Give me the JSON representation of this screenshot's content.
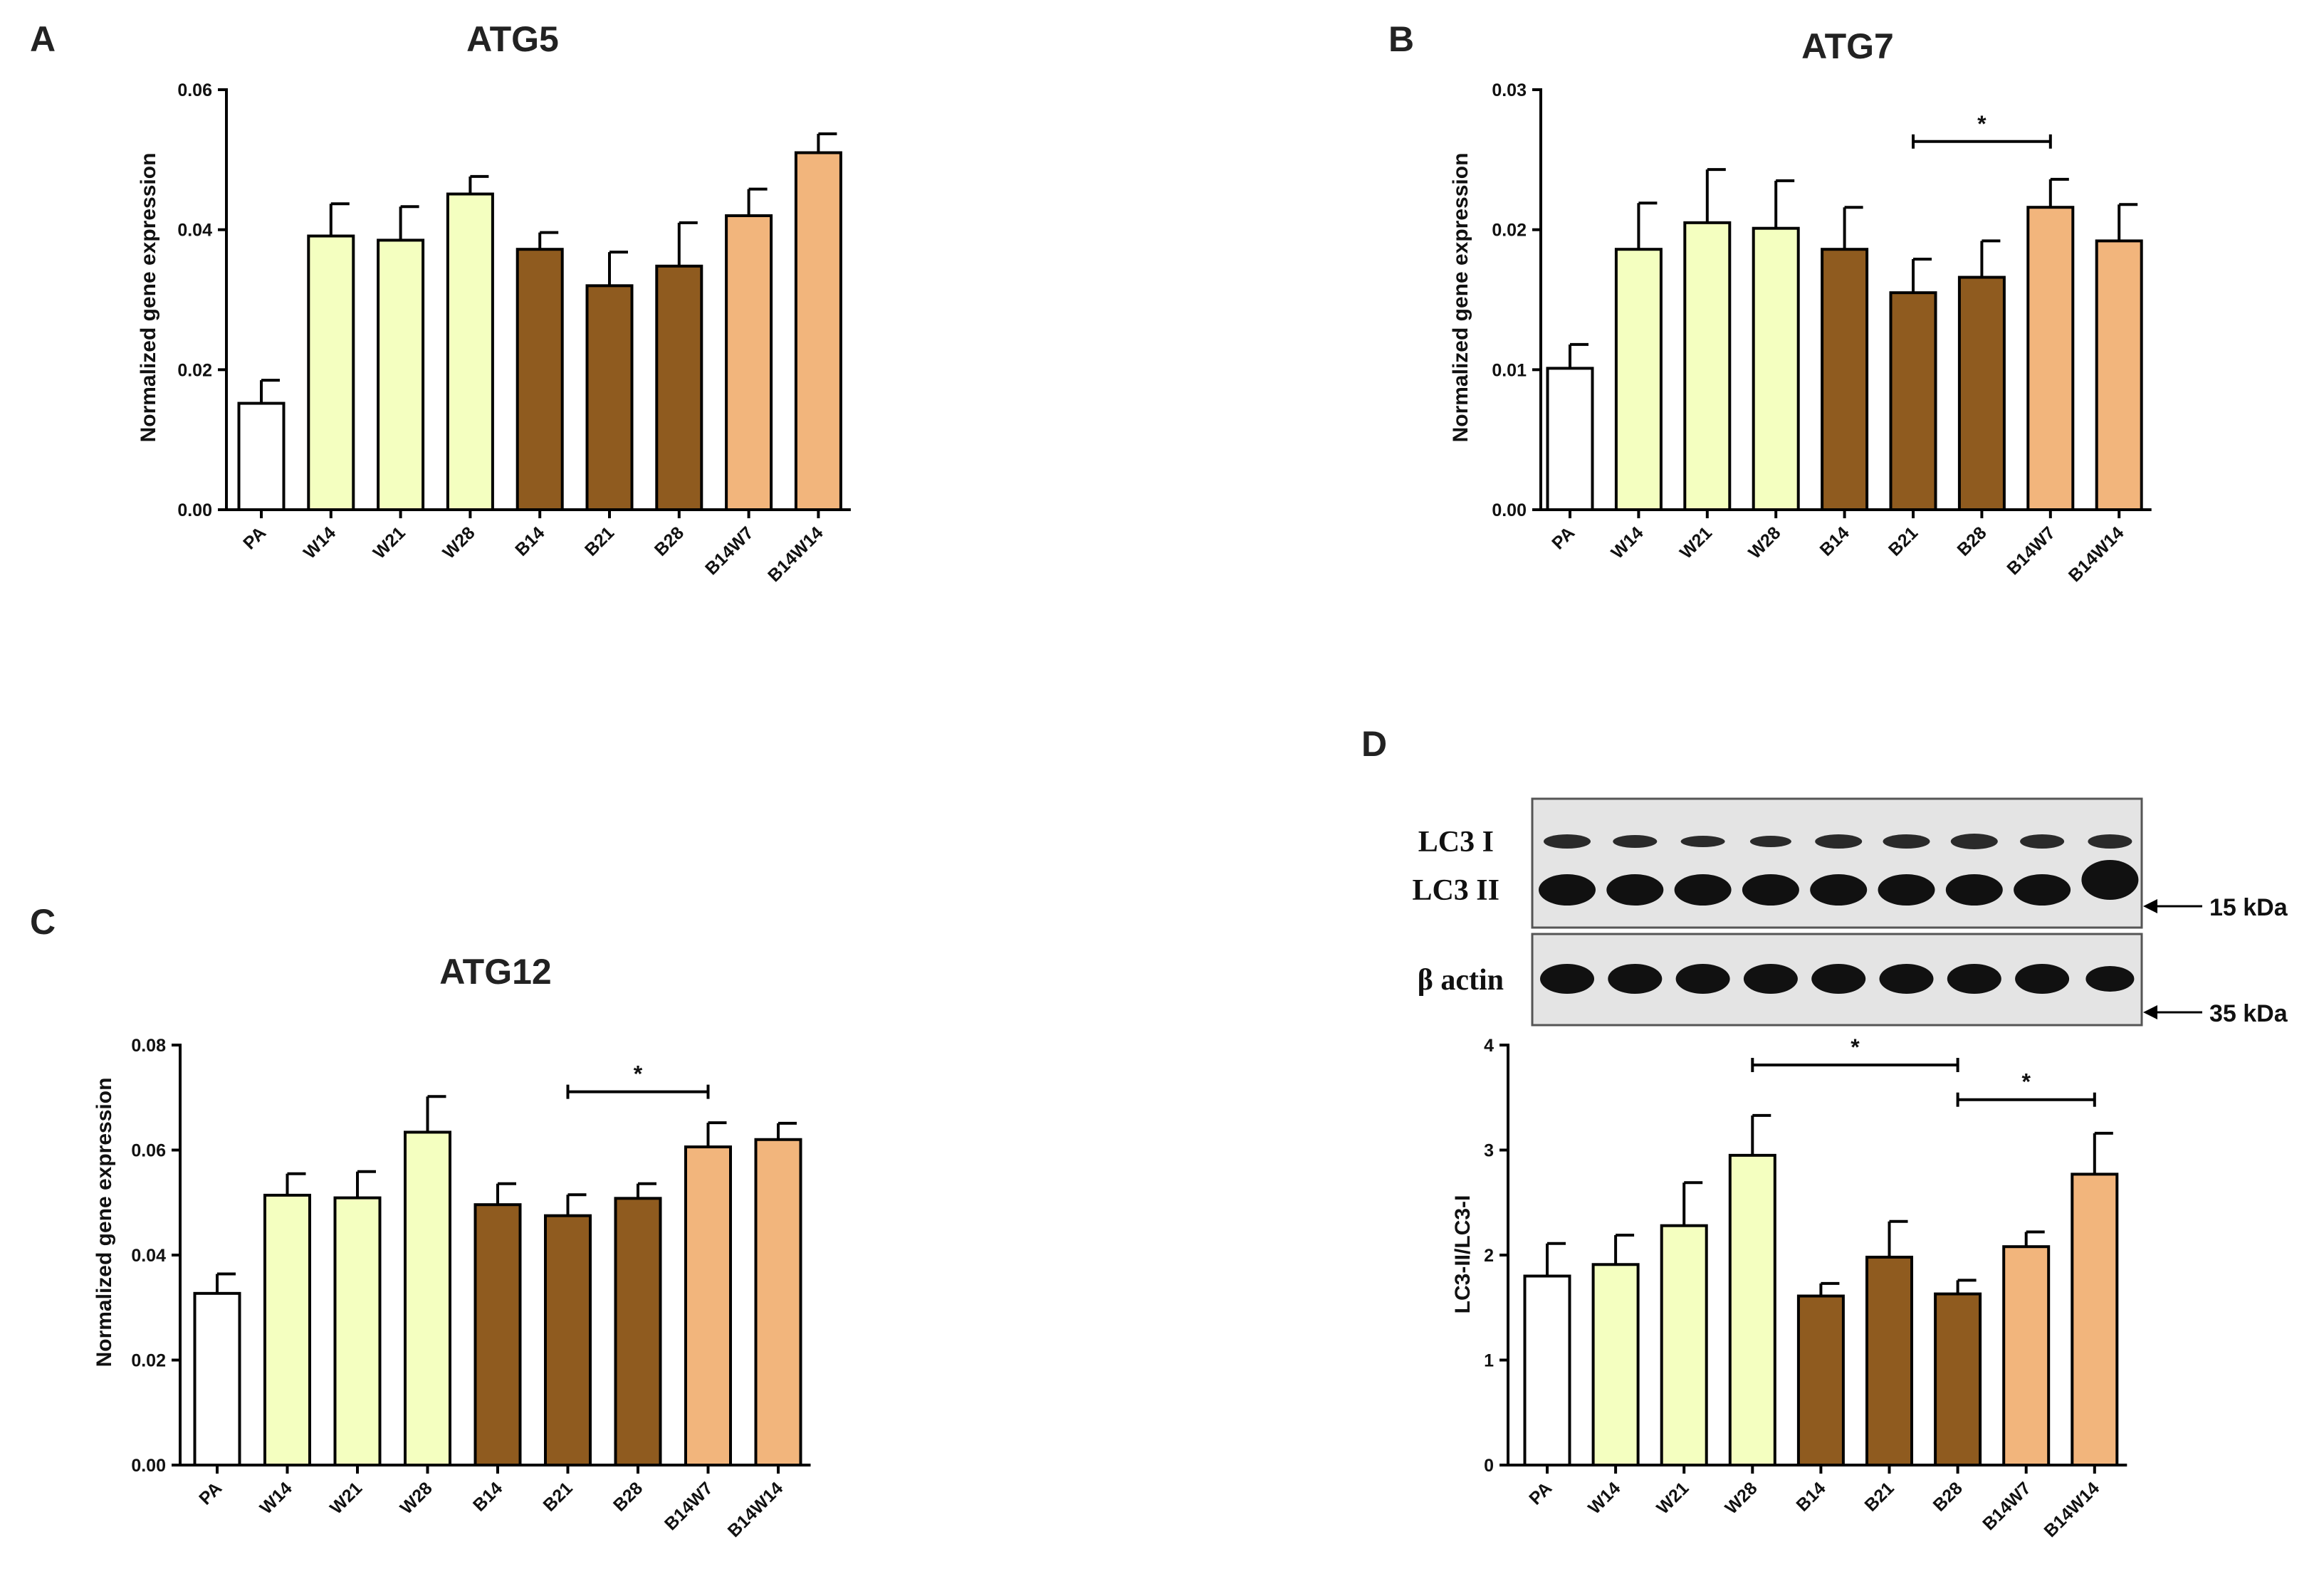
{
  "colors": {
    "PA": "#ffffff",
    "W": "#f4ffc0",
    "B": "#8f5b1f",
    "BW": "#f2b57c",
    "axis": "#000000",
    "blot_bg": "#e6e6e6",
    "band": "#151515"
  },
  "chart_data": [
    {
      "panel": "A",
      "type": "bar",
      "title": "ATG5",
      "ylabel": "Normalized gene expression",
      "xlabel": "",
      "categories": [
        "PA",
        "W14",
        "W21",
        "W28",
        "B14",
        "B21",
        "B28",
        "B14W7",
        "B14W14"
      ],
      "values": [
        0.0152,
        0.0391,
        0.0385,
        0.0451,
        0.0372,
        0.032,
        0.0348,
        0.042,
        0.051
      ],
      "errors": [
        0.0033,
        0.0046,
        0.0048,
        0.0025,
        0.0024,
        0.0048,
        0.0062,
        0.0038,
        0.0027
      ],
      "groups": [
        "PA",
        "W",
        "W",
        "W",
        "B",
        "B",
        "B",
        "BW",
        "BW"
      ],
      "ylim": [
        0,
        0.06
      ],
      "yticks": [
        0.0,
        0.02,
        0.04,
        0.06
      ],
      "ytick_labels": [
        "0.00",
        "0.02",
        "0.04",
        "0.06"
      ],
      "significance": []
    },
    {
      "panel": "B",
      "type": "bar",
      "title": "ATG7",
      "ylabel": "Normalized gene expression",
      "xlabel": "",
      "categories": [
        "PA",
        "W14",
        "W21",
        "W28",
        "B14",
        "B21",
        "B28",
        "B14W7",
        "B14W14"
      ],
      "values": [
        0.0101,
        0.0186,
        0.0205,
        0.0201,
        0.0186,
        0.0155,
        0.0166,
        0.0216,
        0.0192
      ],
      "errors": [
        0.0017,
        0.0033,
        0.0038,
        0.0034,
        0.003,
        0.0024,
        0.0026,
        0.002,
        0.0026
      ],
      "groups": [
        "PA",
        "W",
        "W",
        "W",
        "B",
        "B",
        "B",
        "BW",
        "BW"
      ],
      "ylim": [
        0,
        0.03
      ],
      "yticks": [
        0.0,
        0.01,
        0.02,
        0.03
      ],
      "ytick_labels": [
        "0.00",
        "0.01",
        "0.02",
        "0.03"
      ],
      "significance": [
        {
          "from": "B21",
          "to": "B14W7",
          "y": 0.0263,
          "label": "*"
        }
      ]
    },
    {
      "panel": "C",
      "type": "bar",
      "title": "ATG12",
      "ylabel": "Normalized gene expression",
      "xlabel": "",
      "categories": [
        "PA",
        "W14",
        "W21",
        "W28",
        "B14",
        "B21",
        "B28",
        "B14W7",
        "B14W14"
      ],
      "values": [
        0.0327,
        0.0514,
        0.0509,
        0.0634,
        0.0496,
        0.0475,
        0.0508,
        0.0606,
        0.062
      ],
      "errors": [
        0.0037,
        0.0041,
        0.005,
        0.0068,
        0.004,
        0.004,
        0.0028,
        0.0046,
        0.0031
      ],
      "groups": [
        "PA",
        "W",
        "W",
        "W",
        "B",
        "B",
        "B",
        "BW",
        "BW"
      ],
      "ylim": [
        0,
        0.08
      ],
      "yticks": [
        0.0,
        0.02,
        0.04,
        0.06,
        0.08
      ],
      "ytick_labels": [
        "0.00",
        "0.02",
        "0.04",
        "0.06",
        "0.08"
      ],
      "significance": [
        {
          "from": "B21",
          "to": "B14W7",
          "y": 0.0711,
          "label": "*"
        }
      ]
    },
    {
      "panel": "D",
      "type": "bar",
      "title": "",
      "ylabel": "LC3-II/LC3-I",
      "xlabel": "",
      "categories": [
        "PA",
        "W14",
        "W21",
        "W28",
        "B14",
        "B21",
        "B28",
        "B14W7",
        "B14W14"
      ],
      "values": [
        1.8,
        1.91,
        2.28,
        2.95,
        1.61,
        1.98,
        1.63,
        2.08,
        2.77
      ],
      "errors": [
        0.31,
        0.28,
        0.41,
        0.38,
        0.12,
        0.34,
        0.13,
        0.14,
        0.39
      ],
      "groups": [
        "PA",
        "W",
        "W",
        "W",
        "B",
        "B",
        "B",
        "BW",
        "BW"
      ],
      "ylim": [
        0,
        4
      ],
      "yticks": [
        0,
        1,
        2,
        3,
        4
      ],
      "ytick_labels": [
        "0",
        "1",
        "2",
        "3",
        "4"
      ],
      "significance": [
        {
          "from": "W28",
          "to": "B28",
          "y": 3.81,
          "label": "*"
        },
        {
          "from": "B28",
          "to": "B14W14",
          "y": 3.48,
          "label": "*"
        }
      ]
    }
  ],
  "blot": {
    "rows": [
      {
        "label": "LC3 I",
        "lanes": 9
      },
      {
        "label": "LC3 II",
        "lanes": 9
      },
      {
        "label": "β actin",
        "lanes": 9
      }
    ],
    "markers": [
      "15 kDa",
      "35 kDa"
    ]
  }
}
